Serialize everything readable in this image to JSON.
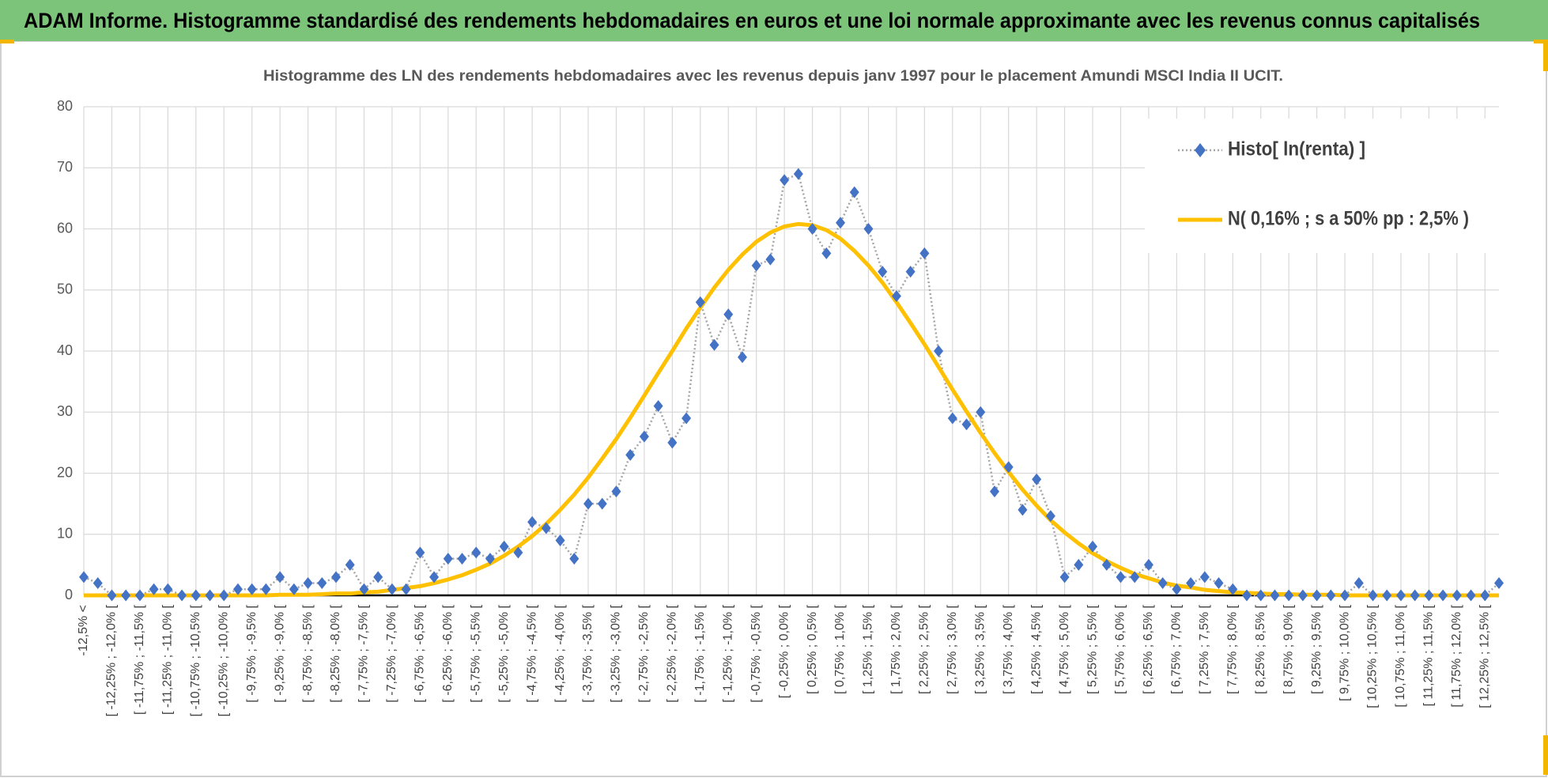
{
  "header": {
    "title": "ADAM Informe. Histogramme standardisé des rendements hebdomadaires en euros et une loi normale approximante avec les revenus connus capitalisés"
  },
  "chart_data": {
    "type": "line",
    "title": "Histogramme  des LN des rendements hebdomadaires avec les revenus depuis janv 1997 pour le placement Amundi MSCI India II UCIT.",
    "categories": [
      "-12,5% <",
      null,
      "[ -12,25% ; -12,0% [",
      null,
      "[ -11,75% ; -11,5% [",
      null,
      "[ -11,25% ; -11,0% [",
      null,
      "[ -10,75% ; -10,5% [",
      null,
      "[ -10,25% ; -10,0% [",
      null,
      "[ -9,75% ; -9,5% [",
      null,
      "[ -9,25% ; -9,0% [",
      null,
      "[ -8,75% ; -8,5% [",
      null,
      "[ -8,25% ; -8,0% [",
      null,
      "[ -7,75% ; -7,5% [",
      null,
      "[ -7,25% ; -7,0% [",
      null,
      "[ -6,75% ; -6,5% [",
      null,
      "[ -6,25% ; -6,0% [",
      null,
      "[ -5,75% ; -5,5% [",
      null,
      "[ -5,25% ; -5,0% [",
      null,
      "[ -4,75% ; -4,5% [",
      null,
      "[ -4,25% ; -4,0% [",
      null,
      "[ -3,75% ; -3,5% [",
      null,
      "[ -3,25% ; -3,0% [",
      null,
      "[ -2,75% ; -2,5% [",
      null,
      "[ -2,25% ; -2,0% [",
      null,
      "[ -1,75% ; -1,5% [",
      null,
      "[ -1,25% ; -1,0% [",
      null,
      "[ -0,75% ; -0,5% [",
      null,
      "[ -0,25% ; 0,0% [",
      null,
      "[ 0,25% ; 0,5% [",
      null,
      "[ 0,75% ; 1,0% [",
      null,
      "[ 1,25% ; 1,5% [",
      null,
      "[ 1,75% ; 2,0% [",
      null,
      "[ 2,25% ; 2,5% [",
      null,
      "[ 2,75% ; 3,0% [",
      null,
      "[ 3,25% ; 3,5% [",
      null,
      "[ 3,75% ; 4,0% [",
      null,
      "[ 4,25% ; 4,5% [",
      null,
      "[ 4,75% ; 5,0% [",
      null,
      "[ 5,25% ; 5,5% [",
      null,
      "[ 5,75% ; 6,0% [",
      null,
      "[ 6,25% ; 6,5% [",
      null,
      "[ 6,75% ; 7,0% [",
      null,
      "[ 7,25% ; 7,5% [",
      null,
      "[ 7,75% ; 8,0% [",
      null,
      "[ 8,25% ; 8,5% [",
      null,
      "[ 8,75% ; 9,0% [",
      null,
      "[ 9,25% ; 9,5% [",
      null,
      "[ 9,75% ; 10,0% [",
      null,
      "[ 10,25% ; 10,5% [",
      null,
      "[ 10,75% ; 11,0% [",
      null,
      "[ 11,25% ; 11,5% [",
      null,
      "[ 11,75% ; 12,0% [",
      null,
      "[ 12,25% ; 12,5% [",
      null
    ],
    "series": [
      {
        "name": "Histo[ ln(renta) ]",
        "color": "#4472c4",
        "line_color": "#a5a5a5",
        "values": [
          3,
          2,
          0,
          0,
          0,
          1,
          1,
          0,
          0,
          0,
          0,
          1,
          1,
          1,
          3,
          1,
          2,
          2,
          3,
          5,
          1,
          3,
          1,
          1,
          7,
          3,
          6,
          6,
          7,
          6,
          8,
          7,
          12,
          11,
          9,
          6,
          15,
          15,
          17,
          23,
          26,
          31,
          25,
          29,
          48,
          41,
          46,
          39,
          54,
          55,
          68,
          69,
          60,
          56,
          61,
          66,
          60,
          53,
          49,
          53,
          56,
          40,
          29,
          28,
          30,
          17,
          21,
          14,
          19,
          13,
          3,
          5,
          8,
          5,
          3,
          3,
          5,
          2,
          1,
          2,
          3,
          2,
          1,
          0,
          0,
          0,
          0,
          0,
          0,
          0,
          0,
          2,
          0,
          0,
          0,
          0,
          0,
          0,
          0,
          0,
          0,
          2
        ]
      },
      {
        "name": "N( 0,16% ; s a 50% pp : 2,5% )",
        "color": "#ffc000",
        "values": [
          0,
          0,
          0,
          0,
          0,
          0,
          0,
          0,
          0,
          0,
          0,
          0,
          0,
          0,
          0.1,
          0.1,
          0.1,
          0.2,
          0.3,
          0.3,
          0.5,
          0.6,
          0.9,
          1.2,
          1.5,
          2.0,
          2.6,
          3.3,
          4.2,
          5.2,
          6.5,
          8.0,
          9.7,
          11.7,
          14.0,
          16.5,
          19.3,
          22.4,
          25.6,
          29.1,
          32.7,
          36.4,
          40.0,
          43.7,
          47.1,
          50.4,
          53.3,
          55.8,
          57.9,
          59.4,
          60.4,
          60.8,
          60.6,
          59.8,
          58.4,
          56.4,
          54.0,
          51.2,
          48.0,
          44.6,
          41.1,
          37.4,
          33.7,
          30.1,
          26.6,
          23.3,
          20.2,
          17.3,
          14.7,
          12.3,
          10.3,
          8.5,
          6.9,
          5.6,
          4.5,
          3.5,
          2.8,
          2.1,
          1.6,
          1.3,
          0.9,
          0.7,
          0.5,
          0.4,
          0.3,
          0.2,
          0.2,
          0.1,
          0.1,
          0.1,
          0,
          0,
          0,
          0,
          0,
          0,
          0,
          0,
          0,
          0,
          0,
          0
        ]
      }
    ],
    "ylim": [
      0,
      80
    ],
    "yticks": [
      0,
      10,
      20,
      30,
      40,
      50,
      60,
      70,
      80
    ],
    "grid": true,
    "legend": "top-right"
  }
}
